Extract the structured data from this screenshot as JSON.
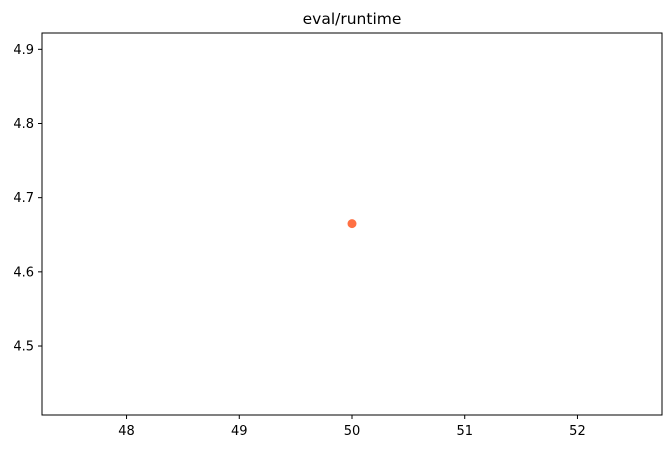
{
  "chart_data": {
    "type": "scatter",
    "title": "eval/runtime",
    "xlabel": "",
    "ylabel": "",
    "xlim": [
      47.25,
      52.75
    ],
    "ylim": [
      4.407,
      4.922
    ],
    "xticks": [
      48,
      49,
      50,
      51,
      52
    ],
    "yticks": [
      4.5,
      4.6,
      4.7,
      4.8,
      4.9
    ],
    "grid": false,
    "series": [
      {
        "color": "#ff7043",
        "points": [
          {
            "x": 50,
            "y": 4.665
          }
        ]
      }
    ]
  }
}
